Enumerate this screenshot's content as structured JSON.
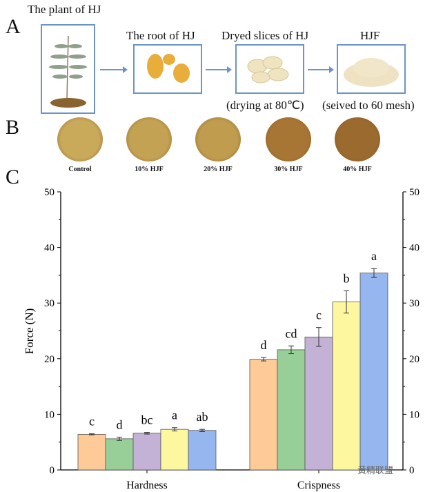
{
  "panel_labels": {
    "a": "A",
    "b": "B",
    "c": "C"
  },
  "process": {
    "steps": [
      {
        "title": "The plant of HJ",
        "note": ""
      },
      {
        "title": "The root of HJ",
        "note": ""
      },
      {
        "title": "Dryed slices of HJ",
        "note": "(drying at 80℃)"
      },
      {
        "title": "HJF",
        "note": "(seived to 60 mesh)"
      }
    ]
  },
  "cookies": [
    {
      "label": "Control",
      "color": "#c9a95a"
    },
    {
      "label": "10% HJF",
      "color": "#c4a253"
    },
    {
      "label": "20% HJF",
      "color": "#bf9c4e"
    },
    {
      "label": "30% HJF",
      "color": "#a87634"
    },
    {
      "label": "40% HJF",
      "color": "#9b6a2e"
    }
  ],
  "watermarks": {
    "right": "黄精联盟"
  },
  "chart_data": {
    "type": "bar",
    "ylabel": "Force (N)",
    "ylim": [
      0,
      50
    ],
    "yticks": [
      0,
      10,
      20,
      30,
      40,
      50
    ],
    "categories": [
      "Hardness",
      "Crispness"
    ],
    "series_colors": [
      "#fdca98",
      "#98cf98",
      "#c3b2d6",
      "#fdf7a0",
      "#95b6ef"
    ],
    "groups": [
      {
        "name": "Hardness",
        "values": [
          6.4,
          5.6,
          6.6,
          7.3,
          7.1
        ],
        "errors": [
          0.1,
          0.3,
          0.15,
          0.3,
          0.2
        ],
        "letters": [
          "c",
          "d",
          "bc",
          "a",
          "ab"
        ]
      },
      {
        "name": "Crispness",
        "values": [
          19.9,
          21.6,
          23.9,
          30.2,
          35.4
        ],
        "errors": [
          0.3,
          0.7,
          1.7,
          2.0,
          0.8
        ],
        "letters": [
          "d",
          "cd",
          "c",
          "b",
          "a"
        ]
      }
    ]
  }
}
